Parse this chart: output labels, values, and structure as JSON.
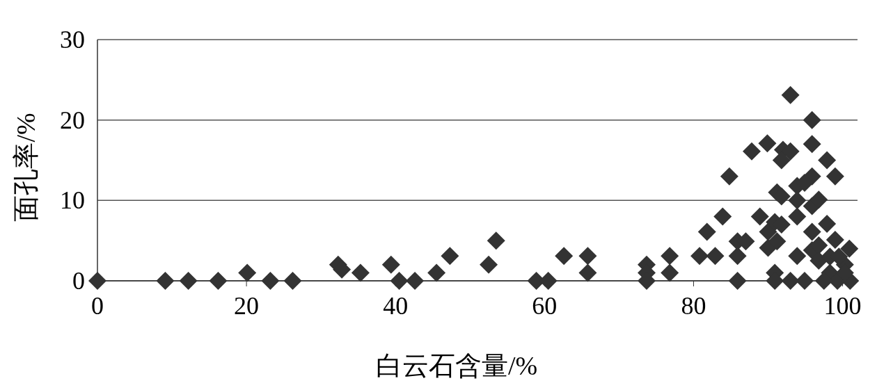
{
  "chart_data": {
    "type": "scatter",
    "xlabel": "白云石含量/%",
    "ylabel": "面孔率/%",
    "xlim": [
      0,
      102
    ],
    "ylim": [
      0,
      30
    ],
    "xticks": [
      0,
      20,
      40,
      60,
      80,
      100
    ],
    "yticks": [
      0,
      10,
      20,
      30
    ],
    "grid": "y",
    "marker": "diamond",
    "series": [
      {
        "color": "#333333",
        "x": [
          0,
          9.1,
          12.2,
          16.2,
          20.1,
          23.2,
          26.2,
          32.3,
          32.8,
          35.3,
          39.4,
          40.5,
          42.6,
          45.5,
          47.3,
          52.5,
          53.5,
          58.9,
          60.5,
          62.6,
          65.8,
          65.8,
          73.7,
          73.7,
          73.7,
          76.8,
          76.8,
          80.8,
          82.9,
          85.9,
          85.9,
          81.8,
          83.9,
          84.8,
          85.9,
          87,
          87.8,
          89.9,
          88.9,
          90.9,
          90.9,
          90,
          90,
          90.9,
          91.8,
          91.2,
          91.2,
          91.8,
          92,
          93,
          91.8,
          93,
          93.9,
          93.9,
          93.9,
          93,
          94.9,
          95.9,
          95.9,
          95.9,
          94.9,
          95.9,
          96.8,
          95.9,
          93.9,
          95.9,
          96.8,
          97.9,
          99,
          97.9,
          99,
          100.9,
          96.8,
          98.3,
          99.3,
          100.3,
          98.3,
          101,
          97.5,
          100.3,
          99.5
        ],
        "values": [
          0,
          0,
          0,
          0,
          1,
          0,
          0,
          2,
          1.4,
          1,
          2,
          0,
          0,
          1,
          3.1,
          2,
          5,
          0,
          0,
          3.1,
          3.1,
          1,
          2,
          1,
          0,
          3.1,
          1,
          3.1,
          3.1,
          3.1,
          0,
          6.1,
          8,
          13,
          4.9,
          4.9,
          16.1,
          17.1,
          8,
          1,
          0,
          6.1,
          4.1,
          7.3,
          7,
          4.9,
          11,
          10.5,
          16.3,
          16.1,
          15,
          23.1,
          11.8,
          10,
          8,
          0,
          0,
          20,
          17,
          13,
          12.2,
          9.3,
          10.1,
          6.1,
          3.1,
          3.8,
          4.4,
          15,
          13,
          7.1,
          5.1,
          4,
          2.5,
          1,
          0,
          2,
          3,
          0,
          0,
          1,
          3
        ]
      }
    ]
  }
}
